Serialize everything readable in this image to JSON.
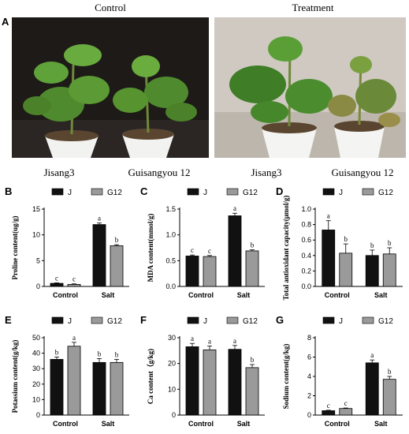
{
  "figure": {
    "panel_a": {
      "letter": "A",
      "left_title": "Control",
      "right_title": "Treatment",
      "cultivars": [
        "Jisang3",
        "Guisangyou 12",
        "Jisang3",
        "Guisangyou 12"
      ]
    }
  },
  "colors": {
    "J": "#111111",
    "G12": "#9a9a9a"
  },
  "chart_data": [
    {
      "id": "B",
      "letter": "B",
      "type": "bar",
      "ylabel": "Proline content(ug/g)",
      "categories": [
        "Control",
        "Salt"
      ],
      "ylim": [
        0,
        15
      ],
      "yticks": [
        0,
        5,
        10,
        15
      ],
      "series": [
        {
          "name": "J",
          "values": [
            0.6,
            12.0
          ],
          "errors": [
            0.1,
            0.3
          ],
          "letters": [
            "c",
            "a"
          ]
        },
        {
          "name": "G12",
          "values": [
            0.4,
            7.9
          ],
          "errors": [
            0.1,
            0.2
          ],
          "letters": [
            "c",
            "b"
          ]
        }
      ]
    },
    {
      "id": "C",
      "letter": "C",
      "type": "bar",
      "ylabel": "MDA content(mmol/g)",
      "categories": [
        "Control",
        "Salt"
      ],
      "ylim": [
        0,
        1.5
      ],
      "yticks": [
        0.0,
        0.5,
        1.0,
        1.5
      ],
      "series": [
        {
          "name": "J",
          "values": [
            0.59,
            1.37
          ],
          "errors": [
            0.02,
            0.05
          ],
          "letters": [
            "c",
            "a"
          ]
        },
        {
          "name": "G12",
          "values": [
            0.58,
            0.69
          ],
          "errors": [
            0.02,
            0.02
          ],
          "letters": [
            "c",
            "b"
          ]
        }
      ]
    },
    {
      "id": "D",
      "letter": "D",
      "type": "bar",
      "ylabel": "Total antioxidant capacity(μmol/g)",
      "categories": [
        "Control",
        "Salt"
      ],
      "ylim": [
        0,
        1.0
      ],
      "yticks": [
        0.0,
        0.2,
        0.4,
        0.6,
        0.8,
        1.0
      ],
      "series": [
        {
          "name": "J",
          "values": [
            0.73,
            0.4
          ],
          "errors": [
            0.12,
            0.07
          ],
          "letters": [
            "a",
            "b"
          ]
        },
        {
          "name": "G12",
          "values": [
            0.43,
            0.42
          ],
          "errors": [
            0.12,
            0.08
          ],
          "letters": [
            "b",
            "b"
          ]
        }
      ]
    },
    {
      "id": "E",
      "letter": "E",
      "type": "bar",
      "ylabel": "Potassium content(g/kg)",
      "categories": [
        "Control",
        "Salt"
      ],
      "ylim": [
        0,
        50
      ],
      "yticks": [
        0,
        10,
        20,
        30,
        40,
        50
      ],
      "series": [
        {
          "name": "J",
          "values": [
            36,
            34
          ],
          "errors": [
            1.5,
            2.5
          ],
          "letters": [
            "b",
            "b"
          ]
        },
        {
          "name": "G12",
          "values": [
            44.5,
            34
          ],
          "errors": [
            2.5,
            2
          ],
          "letters": [
            "a",
            "b"
          ]
        }
      ]
    },
    {
      "id": "F",
      "letter": "F",
      "type": "bar",
      "ylabel": "Ca content（g/kg)",
      "categories": [
        "Control",
        "Salt"
      ],
      "ylim": [
        0,
        30
      ],
      "yticks": [
        0,
        10,
        20,
        30
      ],
      "series": [
        {
          "name": "J",
          "values": [
            26.5,
            25.5
          ],
          "errors": [
            1.3,
            1.5
          ],
          "letters": [
            "a",
            "a"
          ]
        },
        {
          "name": "G12",
          "values": [
            25.3,
            18.4
          ],
          "errors": [
            1.5,
            1.2
          ],
          "letters": [
            "a",
            "b"
          ]
        }
      ]
    },
    {
      "id": "G",
      "letter": "G",
      "type": "bar",
      "ylabel": "Sodium content(g/kg)",
      "categories": [
        "Control",
        "Salt"
      ],
      "ylim": [
        0,
        8
      ],
      "yticks": [
        0,
        2,
        4,
        6,
        8
      ],
      "series": [
        {
          "name": "J",
          "values": [
            0.45,
            5.4
          ],
          "errors": [
            0.05,
            0.3
          ],
          "letters": [
            "c",
            "a"
          ]
        },
        {
          "name": "G12",
          "values": [
            0.68,
            3.7
          ],
          "errors": [
            0.05,
            0.3
          ],
          "letters": [
            "c",
            "b"
          ]
        }
      ]
    }
  ]
}
